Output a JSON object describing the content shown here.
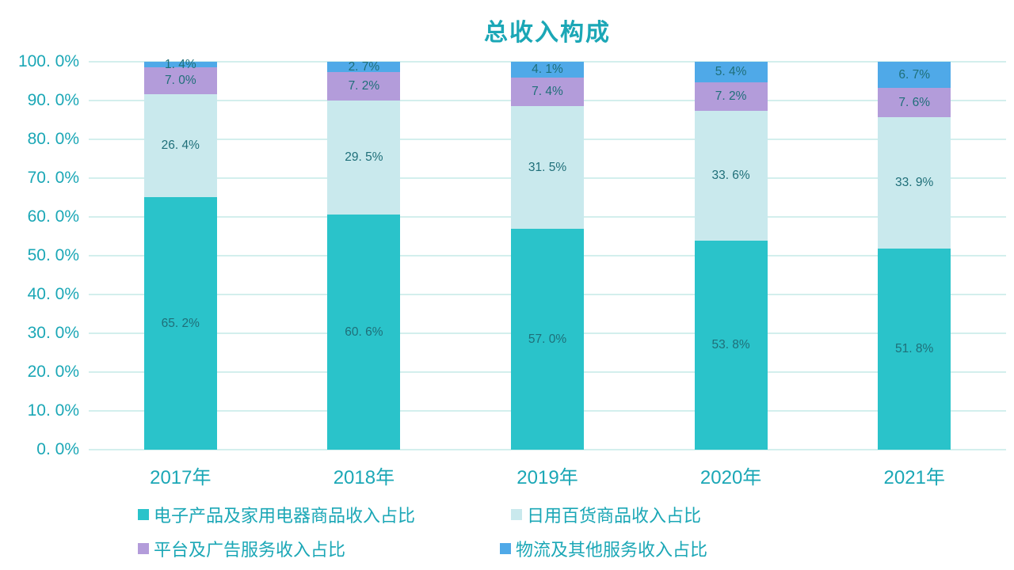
{
  "colors": {
    "axis_text": "#1BA7B6",
    "data_label": "#1F6F79",
    "gridline": "#D3EFED",
    "background": "#FFFFFF"
  },
  "chart_data": {
    "type": "bar",
    "stacked": true,
    "stacked_percent": true,
    "title": "总收入构成",
    "xlabel": "",
    "ylabel": "",
    "categories": [
      "2017年",
      "2018年",
      "2019年",
      "2020年",
      "2021年"
    ],
    "series": [
      {
        "name": "电子产品及家用电器商品收入占比",
        "color": "#2AC3CA",
        "values": [
          65.2,
          60.6,
          57.0,
          53.8,
          51.8
        ],
        "labels": [
          "65. 2%",
          "60. 6%",
          "57. 0%",
          "53. 8%",
          "51. 8%"
        ]
      },
      {
        "name": "日用百货商品收入占比",
        "color": "#C9E9ED",
        "values": [
          26.4,
          29.5,
          31.5,
          33.6,
          33.9
        ],
        "labels": [
          "26. 4%",
          "29. 5%",
          "31. 5%",
          "33. 6%",
          "33. 9%"
        ]
      },
      {
        "name": "平台及广告服务收入占比",
        "color": "#B39CDA",
        "values": [
          7.0,
          7.2,
          7.4,
          7.2,
          7.6
        ],
        "labels": [
          "7. 0%",
          "7. 2%",
          "7. 4%",
          "7. 2%",
          "7. 6%"
        ]
      },
      {
        "name": "物流及其他服务收入占比",
        "color": "#4FA9E8",
        "values": [
          1.4,
          2.7,
          4.1,
          5.4,
          6.7
        ],
        "labels": [
          "1. 4%",
          "2. 7%",
          "4. 1%",
          "5. 4%",
          "6. 7%"
        ]
      }
    ],
    "y_axis": {
      "min": 0,
      "max": 100,
      "step": 10,
      "ticks": [
        "100. 0%",
        "90. 0%",
        "80. 0%",
        "70. 0%",
        "60. 0%",
        "50. 0%",
        "40. 0%",
        "30. 0%",
        "20. 0%",
        "10. 0%",
        "0. 0%"
      ]
    },
    "grid": true,
    "legend_position": "bottom"
  }
}
